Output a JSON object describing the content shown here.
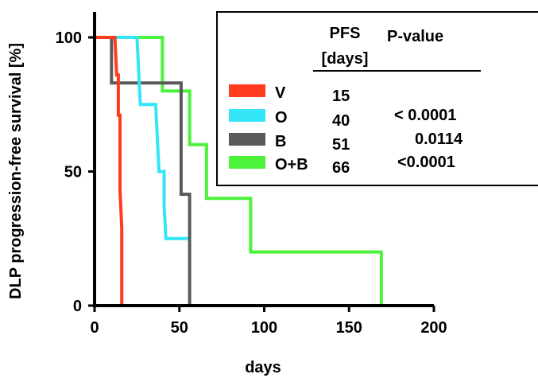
{
  "chart_data": {
    "type": "line",
    "step": true,
    "xlabel": "days",
    "ylabel": "DLP progression-free survival [%]",
    "xlim": [
      0,
      200
    ],
    "ylim": [
      0,
      100
    ],
    "xticks": [
      0,
      50,
      100,
      150,
      200
    ],
    "yticks": [
      0,
      50,
      100
    ],
    "grid": false,
    "legend": {
      "placement": "top-right",
      "header_pfs_line1": "PFS",
      "header_pfs_line2": "[days]",
      "header_pvalue": "P-value"
    },
    "series": [
      {
        "name": "V",
        "color": "#ff3a1f",
        "pfs": "15",
        "pvalue": "",
        "points": [
          [
            0,
            100
          ],
          [
            12,
            100
          ],
          [
            12,
            100
          ],
          [
            13,
            86
          ],
          [
            14,
            86
          ],
          [
            14,
            71
          ],
          [
            15,
            71
          ],
          [
            15,
            57
          ],
          [
            15,
            43
          ],
          [
            16,
            29
          ],
          [
            16,
            0
          ]
        ]
      },
      {
        "name": "O",
        "color": "#33e6f7",
        "pfs": "40",
        "pvalue": "< 0.0001",
        "points": [
          [
            0,
            100
          ],
          [
            25,
            100
          ],
          [
            26,
            87.5
          ],
          [
            27,
            75
          ],
          [
            36,
            75
          ],
          [
            37,
            62.5
          ],
          [
            38,
            50
          ],
          [
            41,
            50
          ],
          [
            41,
            37.5
          ],
          [
            42,
            25
          ],
          [
            55,
            25
          ]
        ]
      },
      {
        "name": "B",
        "color": "#5a5a5a",
        "pfs": "51",
        "pvalue": "0.0114",
        "points": [
          [
            0,
            100
          ],
          [
            10,
            100
          ],
          [
            10,
            83
          ],
          [
            51,
            83
          ],
          [
            51,
            41.5
          ],
          [
            56,
            41.5
          ],
          [
            56,
            0
          ]
        ]
      },
      {
        "name": "O+B",
        "color": "#4df23a",
        "pfs": "66",
        "pvalue": "<0.0001",
        "points": [
          [
            0,
            100
          ],
          [
            40,
            100
          ],
          [
            40,
            80
          ],
          [
            56,
            80
          ],
          [
            56,
            60
          ],
          [
            66,
            60
          ],
          [
            66,
            40
          ],
          [
            92,
            40
          ],
          [
            92,
            20
          ],
          [
            169,
            20
          ],
          [
            169,
            0
          ]
        ]
      }
    ]
  }
}
